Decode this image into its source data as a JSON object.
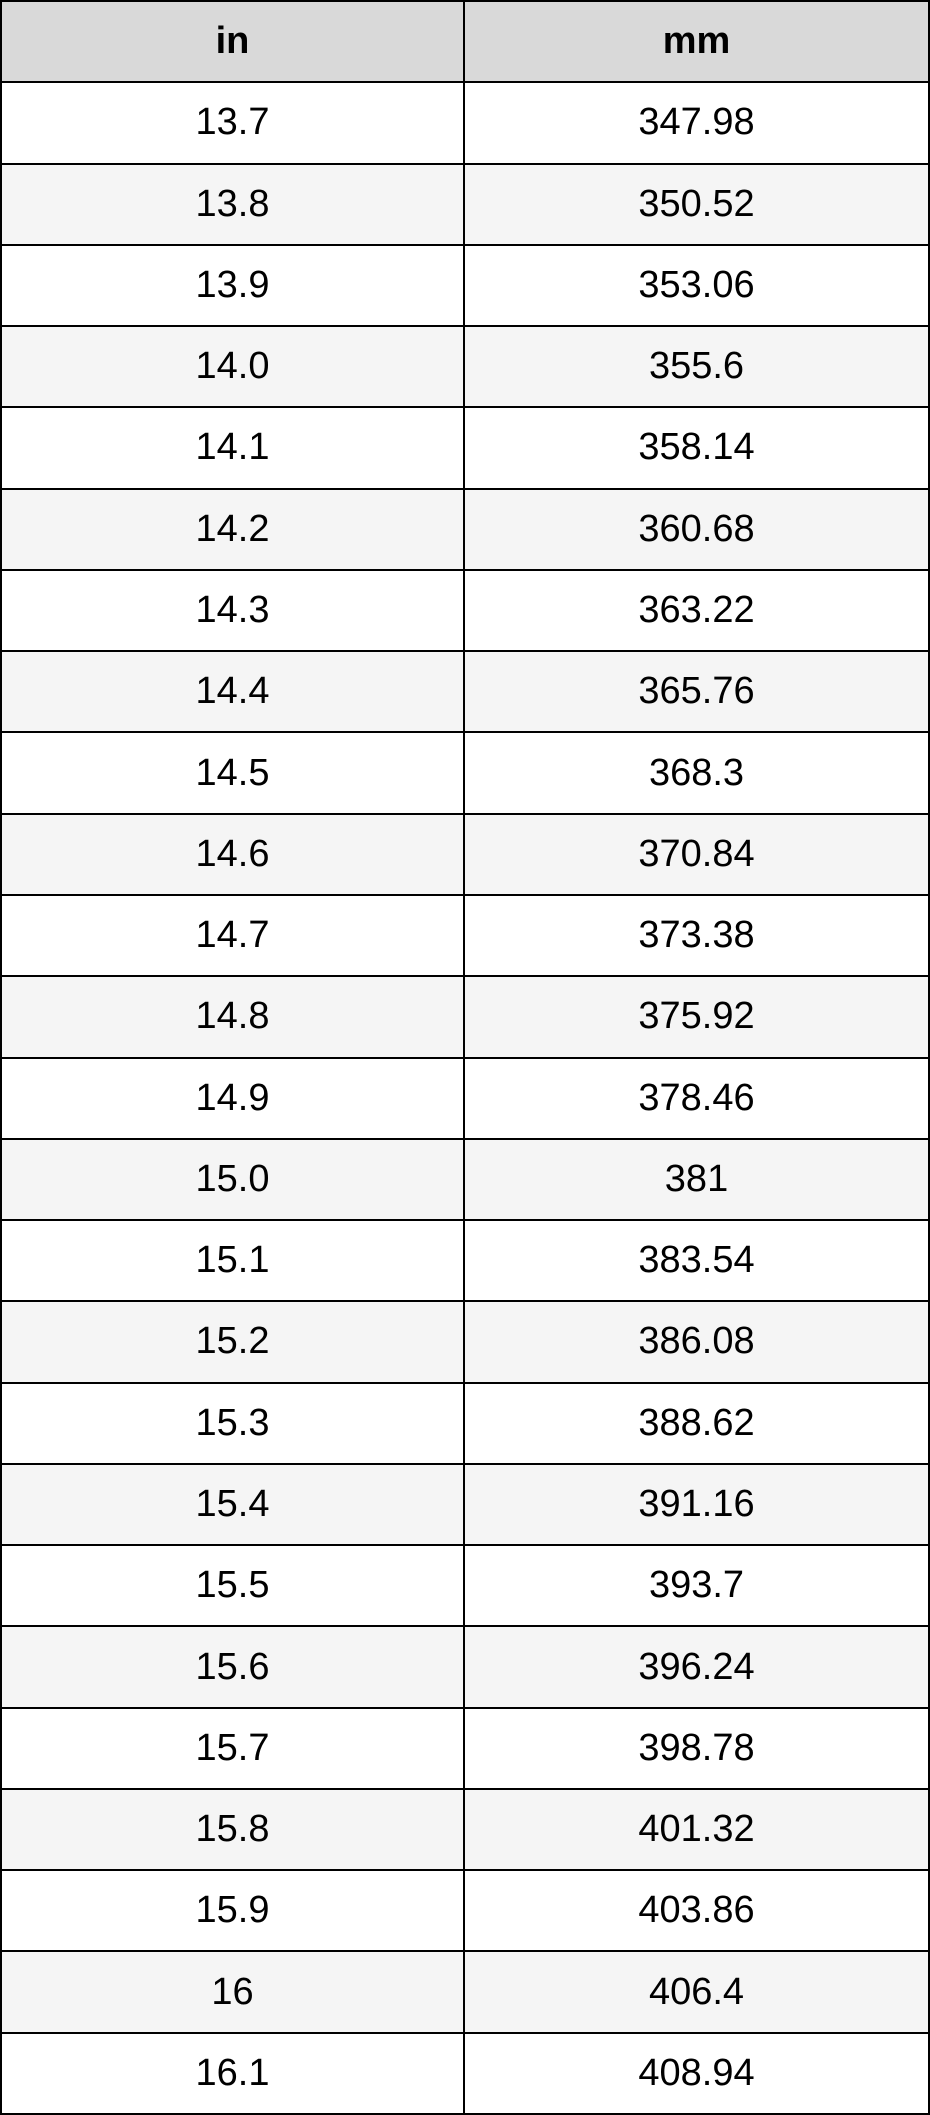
{
  "table": {
    "header": [
      "in",
      "mm"
    ],
    "rows": [
      [
        "13.7",
        "347.98"
      ],
      [
        "13.8",
        "350.52"
      ],
      [
        "13.9",
        "353.06"
      ],
      [
        "14.0",
        "355.6"
      ],
      [
        "14.1",
        "358.14"
      ],
      [
        "14.2",
        "360.68"
      ],
      [
        "14.3",
        "363.22"
      ],
      [
        "14.4",
        "365.76"
      ],
      [
        "14.5",
        "368.3"
      ],
      [
        "14.6",
        "370.84"
      ],
      [
        "14.7",
        "373.38"
      ],
      [
        "14.8",
        "375.92"
      ],
      [
        "14.9",
        "378.46"
      ],
      [
        "15.0",
        "381"
      ],
      [
        "15.1",
        "383.54"
      ],
      [
        "15.2",
        "386.08"
      ],
      [
        "15.3",
        "388.62"
      ],
      [
        "15.4",
        "391.16"
      ],
      [
        "15.5",
        "393.7"
      ],
      [
        "15.6",
        "396.24"
      ],
      [
        "15.7",
        "398.78"
      ],
      [
        "15.8",
        "401.32"
      ],
      [
        "15.9",
        "403.86"
      ],
      [
        "16",
        "406.4"
      ],
      [
        "16.1",
        "408.94"
      ]
    ]
  }
}
